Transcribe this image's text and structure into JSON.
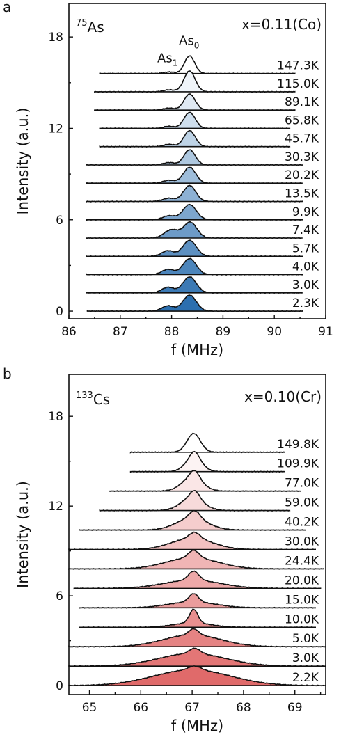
{
  "chart_data": [
    {
      "panel_label": "a",
      "type": "area",
      "nucleus_mass": "75",
      "nucleus": "As",
      "composition": "x=0.11(Co)",
      "peak_labels": [
        {
          "base": "As",
          "sub": "1",
          "x": 87.92
        },
        {
          "base": "As",
          "sub": "0",
          "x": 88.34
        }
      ],
      "xlabel": "f (MHz)",
      "ylabel": "Intensity (a.u.)",
      "xlim": [
        86,
        91
      ],
      "ylim": [
        -0.5,
        20.2
      ],
      "xticks": [
        86,
        87,
        88,
        89,
        90,
        91
      ],
      "xtick_labels": [
        "86",
        "87",
        "88",
        "89",
        "90",
        "91"
      ],
      "yticks": [
        0,
        6,
        12,
        18
      ],
      "ytick_labels": [
        "0",
        "6",
        "12",
        "18"
      ],
      "color_low_T": "#2c6faf",
      "color_high_T": "#ffffff",
      "series": [
        {
          "name": "2.3K",
          "offset": 0,
          "x_range": [
            86.35,
            90.55
          ],
          "peaks": [
            {
              "c": 88.35,
              "w": 0.13,
              "h": 1.0
            },
            {
              "c": 87.93,
              "w": 0.12,
              "h": 0.33
            }
          ]
        },
        {
          "name": "3.0K",
          "offset": 1.2,
          "x_range": [
            86.35,
            90.55
          ],
          "peaks": [
            {
              "c": 88.35,
              "w": 0.13,
              "h": 1.0
            },
            {
              "c": 87.93,
              "w": 0.12,
              "h": 0.35
            }
          ]
        },
        {
          "name": "4.0K",
          "offset": 2.4,
          "x_range": [
            86.35,
            90.55
          ],
          "peaks": [
            {
              "c": 88.35,
              "w": 0.13,
              "h": 1.0
            },
            {
              "c": 87.93,
              "w": 0.12,
              "h": 0.33
            }
          ]
        },
        {
          "name": "5.7K",
          "offset": 3.6,
          "x_range": [
            86.35,
            90.55
          ],
          "peaks": [
            {
              "c": 88.35,
              "w": 0.13,
              "h": 1.0
            },
            {
              "c": 87.93,
              "w": 0.12,
              "h": 0.35
            }
          ]
        },
        {
          "name": "7.4K",
          "offset": 4.8,
          "x_range": [
            86.35,
            90.55
          ],
          "peaks": [
            {
              "c": 88.36,
              "w": 0.13,
              "h": 1.0
            },
            {
              "c": 87.95,
              "w": 0.12,
              "h": 0.4
            },
            {
              "c": 88.08,
              "w": 0.1,
              "h": 0.2
            }
          ]
        },
        {
          "name": "9.9K",
          "offset": 6.0,
          "x_range": [
            86.35,
            90.55
          ],
          "peaks": [
            {
              "c": 88.35,
              "w": 0.13,
              "h": 0.95
            },
            {
              "c": 87.95,
              "w": 0.12,
              "h": 0.25
            }
          ]
        },
        {
          "name": "13.5K",
          "offset": 7.2,
          "x_range": [
            86.35,
            90.55
          ],
          "peaks": [
            {
              "c": 88.35,
              "w": 0.12,
              "h": 1.0
            },
            {
              "c": 87.95,
              "w": 0.12,
              "h": 0.2
            }
          ]
        },
        {
          "name": "20.2K",
          "offset": 8.4,
          "x_range": [
            86.35,
            90.55
          ],
          "peaks": [
            {
              "c": 88.35,
              "w": 0.12,
              "h": 1.0
            },
            {
              "c": 87.95,
              "w": 0.12,
              "h": 0.18
            }
          ]
        },
        {
          "name": "30.3K",
          "offset": 9.6,
          "x_range": [
            86.35,
            90.55
          ],
          "peaks": [
            {
              "c": 88.35,
              "w": 0.11,
              "h": 0.95
            },
            {
              "c": 87.95,
              "w": 0.11,
              "h": 0.15
            }
          ]
        },
        {
          "name": "45.7K",
          "offset": 10.8,
          "x_range": [
            86.6,
            90.3
          ],
          "peaks": [
            {
              "c": 88.35,
              "w": 0.11,
              "h": 1.0
            },
            {
              "c": 87.95,
              "w": 0.11,
              "h": 0.14
            }
          ]
        },
        {
          "name": "65.8K",
          "offset": 12.0,
          "x_range": [
            86.6,
            90.3
          ],
          "peaks": [
            {
              "c": 88.35,
              "w": 0.11,
              "h": 1.0
            },
            {
              "c": 87.95,
              "w": 0.11,
              "h": 0.13
            }
          ]
        },
        {
          "name": "89.1K",
          "offset": 13.2,
          "x_range": [
            86.5,
            90.4
          ],
          "peaks": [
            {
              "c": 88.35,
              "w": 0.11,
              "h": 1.0
            },
            {
              "c": 87.95,
              "w": 0.11,
              "h": 0.12
            }
          ]
        },
        {
          "name": "115.0K",
          "offset": 14.4,
          "x_range": [
            86.5,
            90.4
          ],
          "peaks": [
            {
              "c": 88.35,
              "w": 0.11,
              "h": 1.3
            },
            {
              "c": 87.95,
              "w": 0.11,
              "h": 0.12
            }
          ]
        },
        {
          "name": "147.3K",
          "offset": 15.6,
          "x_range": [
            86.6,
            90.4
          ],
          "peaks": [
            {
              "c": 88.35,
              "w": 0.1,
              "h": 1.1
            },
            {
              "c": 87.95,
              "w": 0.1,
              "h": 0.1
            }
          ]
        }
      ]
    },
    {
      "panel_label": "b",
      "type": "area",
      "nucleus_mass": "133",
      "nucleus": "Cs",
      "composition": "x=0.10(Cr)",
      "peak_labels": [],
      "xlabel": "f (MHz)",
      "ylabel": "Intensity (a.u.)",
      "xlim": [
        64.6,
        69.6
      ],
      "ylim": [
        -0.6,
        20.8
      ],
      "xticks": [
        65,
        66,
        67,
        68,
        69
      ],
      "xtick_labels": [
        "65",
        "66",
        "67",
        "68",
        "69"
      ],
      "yticks": [
        0,
        6,
        12,
        18
      ],
      "ytick_labels": [
        "0",
        "6",
        "12",
        "18"
      ],
      "color_low_T": "#e06a6a",
      "color_high_T": "#ffffff",
      "series": [
        {
          "name": "2.2K",
          "offset": 0,
          "x_range": [
            64.6,
            69.6
          ],
          "peaks": [
            {
              "c": 67.0,
              "w": 0.75,
              "h": 1.05
            },
            {
              "c": 67.05,
              "w": 0.12,
              "h": 0.25
            }
          ]
        },
        {
          "name": "3.0K",
          "offset": 1.3,
          "x_range": [
            64.6,
            69.6
          ],
          "peaks": [
            {
              "c": 67.0,
              "w": 0.65,
              "h": 0.85
            },
            {
              "c": 67.05,
              "w": 0.1,
              "h": 0.35
            }
          ]
        },
        {
          "name": "5.0K",
          "offset": 2.6,
          "x_range": [
            64.6,
            69.6
          ],
          "peaks": [
            {
              "c": 67.0,
              "w": 0.55,
              "h": 0.8
            },
            {
              "c": 67.03,
              "w": 0.09,
              "h": 0.4
            }
          ]
        },
        {
          "name": "10.0K",
          "offset": 3.9,
          "x_range": [
            64.8,
            69.4
          ],
          "peaks": [
            {
              "c": 67.0,
              "w": 0.35,
              "h": 0.3
            },
            {
              "c": 67.03,
              "w": 0.08,
              "h": 0.9
            }
          ]
        },
        {
          "name": "15.0K",
          "offset": 5.2,
          "x_range": [
            64.8,
            69.4
          ],
          "peaks": [
            {
              "c": 67.0,
              "w": 0.45,
              "h": 0.4
            },
            {
              "c": 67.03,
              "w": 0.09,
              "h": 0.55
            }
          ]
        },
        {
          "name": "20.0K",
          "offset": 6.5,
          "x_range": [
            64.7,
            69.5
          ],
          "peaks": [
            {
              "c": 67.0,
              "w": 0.55,
              "h": 0.55
            },
            {
              "c": 67.03,
              "w": 0.1,
              "h": 0.6
            }
          ]
        },
        {
          "name": "24.4K",
          "offset": 7.8,
          "x_range": [
            64.6,
            69.55
          ],
          "peaks": [
            {
              "c": 67.0,
              "w": 0.5,
              "h": 0.75
            },
            {
              "c": 67.03,
              "w": 0.1,
              "h": 0.5
            }
          ]
        },
        {
          "name": "30.0K",
          "offset": 9.1,
          "x_range": [
            64.6,
            69.4
          ],
          "peaks": [
            {
              "c": 67.0,
              "w": 0.4,
              "h": 0.75
            },
            {
              "c": 67.05,
              "w": 0.1,
              "h": 0.4
            }
          ]
        },
        {
          "name": "40.2K",
          "offset": 10.4,
          "x_range": [
            64.8,
            69.2
          ],
          "peaks": [
            {
              "c": 67.0,
              "w": 0.3,
              "h": 0.8
            },
            {
              "c": 67.05,
              "w": 0.1,
              "h": 0.5
            }
          ]
        },
        {
          "name": "59.0K",
          "offset": 11.7,
          "x_range": [
            65.2,
            68.9
          ],
          "peaks": [
            {
              "c": 67.0,
              "w": 0.22,
              "h": 0.85
            },
            {
              "c": 67.05,
              "w": 0.09,
              "h": 0.5
            }
          ]
        },
        {
          "name": "77.0K",
          "offset": 13.0,
          "x_range": [
            65.4,
            69.1
          ],
          "peaks": [
            {
              "c": 67.0,
              "w": 0.2,
              "h": 0.9
            },
            {
              "c": 67.05,
              "w": 0.09,
              "h": 0.5
            }
          ]
        },
        {
          "name": "109.9K",
          "offset": 14.3,
          "x_range": [
            65.8,
            68.8
          ],
          "peaks": [
            {
              "c": 67.03,
              "w": 0.16,
              "h": 0.95
            },
            {
              "c": 67.05,
              "w": 0.08,
              "h": 0.4
            }
          ]
        },
        {
          "name": "149.8K",
          "offset": 15.6,
          "x_range": [
            65.8,
            68.8
          ],
          "peaks": [
            {
              "c": 67.03,
              "w": 0.13,
              "h": 1.25
            }
          ]
        }
      ]
    }
  ]
}
